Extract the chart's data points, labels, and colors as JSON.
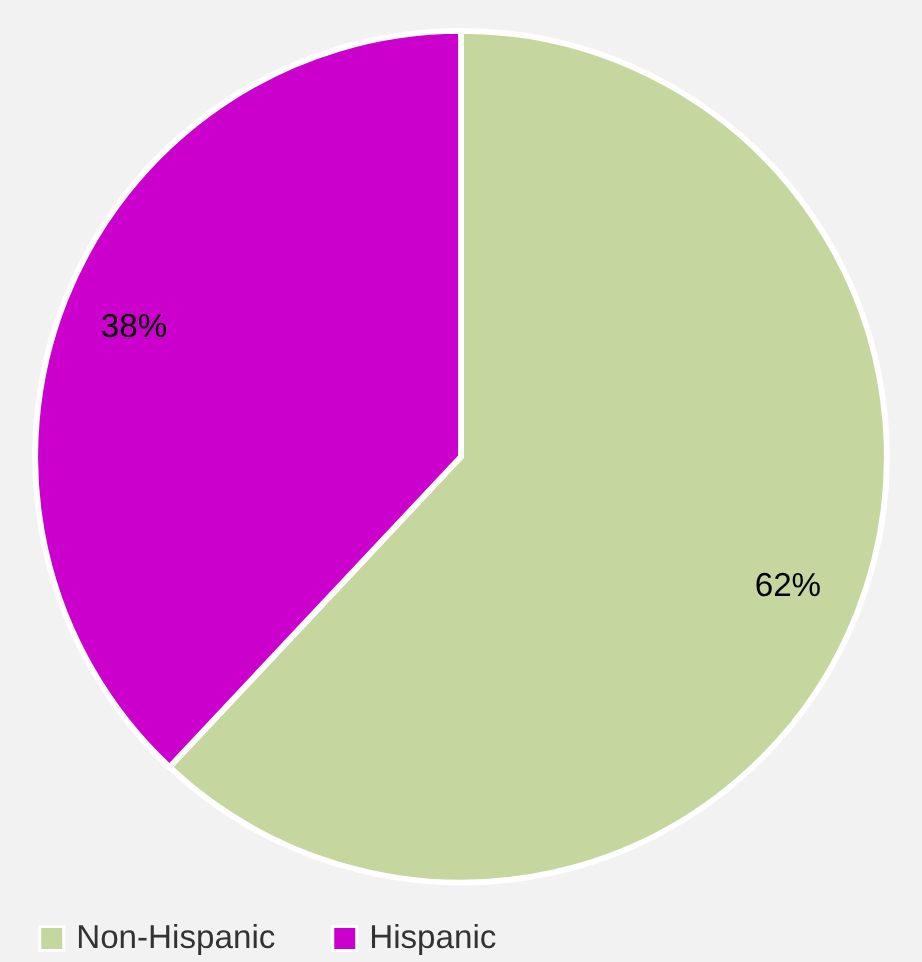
{
  "chart_data": {
    "type": "pie",
    "categories": [
      "Non-Hispanic",
      "Hispanic"
    ],
    "values": [
      62,
      38
    ],
    "colors": [
      "#c5d79f",
      "#cc00cc"
    ],
    "value_labels": [
      "62%",
      "38%"
    ],
    "legend": "bottom"
  }
}
